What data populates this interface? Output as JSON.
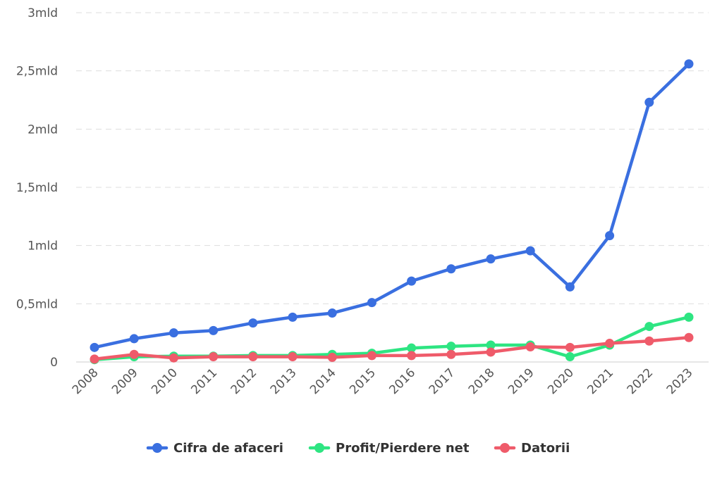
{
  "chart_data": {
    "type": "line",
    "title": "",
    "xlabel": "",
    "ylabel": "",
    "x": [
      "2008",
      "2009",
      "2010",
      "2011",
      "2012",
      "2013",
      "2014",
      "2015",
      "2016",
      "2017",
      "2018",
      "2019",
      "2020",
      "2021",
      "2022",
      "2023"
    ],
    "y_ticks": [
      {
        "value": 0,
        "label": "0"
      },
      {
        "value": 0.5,
        "label": "0,5mld"
      },
      {
        "value": 1,
        "label": "1mld"
      },
      {
        "value": 1.5,
        "label": "1,5mld"
      },
      {
        "value": 2,
        "label": "2mld"
      },
      {
        "value": 2.5,
        "label": "2,5mld"
      },
      {
        "value": 3,
        "label": "3mld"
      }
    ],
    "ylim": [
      0,
      3
    ],
    "grid": true,
    "legend_position": "bottom-center",
    "series": [
      {
        "name": "Cifra de afaceri",
        "color": "#3a6fe0",
        "values": [
          0.125,
          0.2,
          0.25,
          0.27,
          0.335,
          0.385,
          0.42,
          0.51,
          0.695,
          0.8,
          0.885,
          0.955,
          0.645,
          1.085,
          2.23,
          2.56
        ]
      },
      {
        "name": "Profit/Pierdere net",
        "color": "#2ee582",
        "values": [
          0.02,
          0.045,
          0.05,
          0.05,
          0.055,
          0.055,
          0.065,
          0.075,
          0.12,
          0.135,
          0.145,
          0.145,
          0.045,
          0.145,
          0.305,
          0.385
        ]
      },
      {
        "name": "Datorii",
        "color": "#ef5b6a",
        "values": [
          0.025,
          0.065,
          0.035,
          0.045,
          0.045,
          0.045,
          0.04,
          0.055,
          0.055,
          0.065,
          0.085,
          0.13,
          0.125,
          0.16,
          0.18,
          0.21
        ]
      }
    ]
  }
}
